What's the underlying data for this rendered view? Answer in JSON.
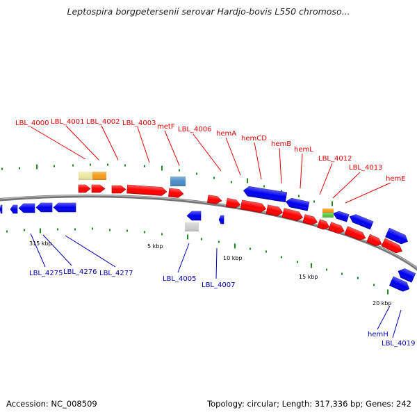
{
  "title": "Leptospira borgpetersenii serovar Hardjo-bovis L550 chromoso...",
  "footer": {
    "accession": "Accession: NC_008509",
    "summary": "Topology: circular; Length: 317,336 bp; Genes: 242"
  },
  "colors": {
    "forward_gene": "#ff0000",
    "reverse_gene": "#0000ee",
    "backbone": "#888888",
    "tick": "#1e8a1e",
    "label_forward": "#e00000",
    "label_reverse": "#0000b0"
  },
  "tick_labels": [
    "315 kbp",
    "5 kbp",
    "10 kbp",
    "15 kbp",
    "20 kbp"
  ],
  "gene_labels": {
    "outer": [
      "LBL_4000",
      "LBL_4001",
      "LBL_4002",
      "LBL_4003",
      "metF",
      "LBL_4006",
      "hemA",
      "hemCD",
      "hemB",
      "hemL",
      "LBL_4012",
      "LBL_4013",
      "hemE"
    ],
    "inner": [
      "LBL_4275",
      "LBL_4276",
      "LBL_4277",
      "LBL_4005",
      "LBL_4007",
      "hemH",
      "LBL_4019"
    ]
  }
}
